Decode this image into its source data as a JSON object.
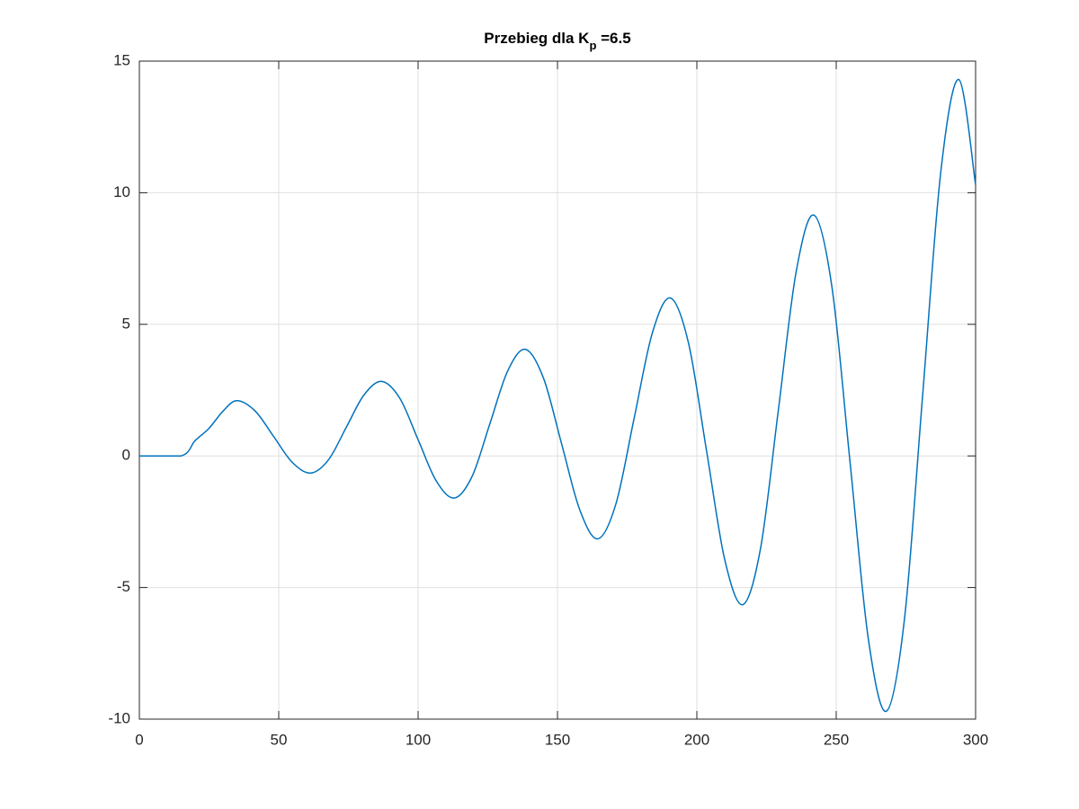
{
  "chart_data": {
    "type": "line",
    "title": [
      "Przebieg dla K",
      "p",
      " =6.5"
    ],
    "x": [
      0,
      15,
      20,
      25,
      30,
      35,
      41.6,
      48.25,
      54.9,
      61.5,
      67.9,
      74.25,
      80.6,
      87,
      93.5,
      100,
      106.5,
      113,
      119.4,
      125.75,
      132.1,
      138.5,
      145,
      151.5,
      158,
      164.5,
      171,
      177.5,
      184,
      190.5,
      197,
      203.5,
      210,
      216.5,
      222.9,
      229.25,
      235.6,
      242,
      248.5,
      255,
      261.5,
      268,
      274.5,
      281,
      287.5,
      294,
      300
    ],
    "series": [
      {
        "color": "#0072bd",
        "values": [
          0,
          0,
          0.58,
          1.05,
          1.7,
          2.1,
          1.7,
          0.725,
          -0.25,
          -0.65,
          -0.14,
          1.09,
          2.32,
          2.83,
          2.18,
          0.615,
          -0.95,
          -1.6,
          -0.77,
          1.225,
          3.22,
          4.05,
          2.95,
          0.45,
          -2.05,
          -3.15,
          -1.81,
          1.43,
          4.66,
          6.0,
          4.29,
          0.18,
          -3.94,
          -5.65,
          -3.48,
          1.75,
          6.98,
          9.15,
          6.39,
          -0.28,
          -6.94,
          -9.7,
          -6.18,
          2.3,
          10.78,
          14.3,
          10.3
        ]
      }
    ],
    "xlim": [
      0,
      300
    ],
    "xticks": [
      0,
      50,
      100,
      150,
      200,
      250,
      300
    ],
    "ylim": [
      -10,
      15
    ],
    "yticks": [
      -10,
      -5,
      0,
      5,
      10,
      15
    ],
    "grid": true
  }
}
